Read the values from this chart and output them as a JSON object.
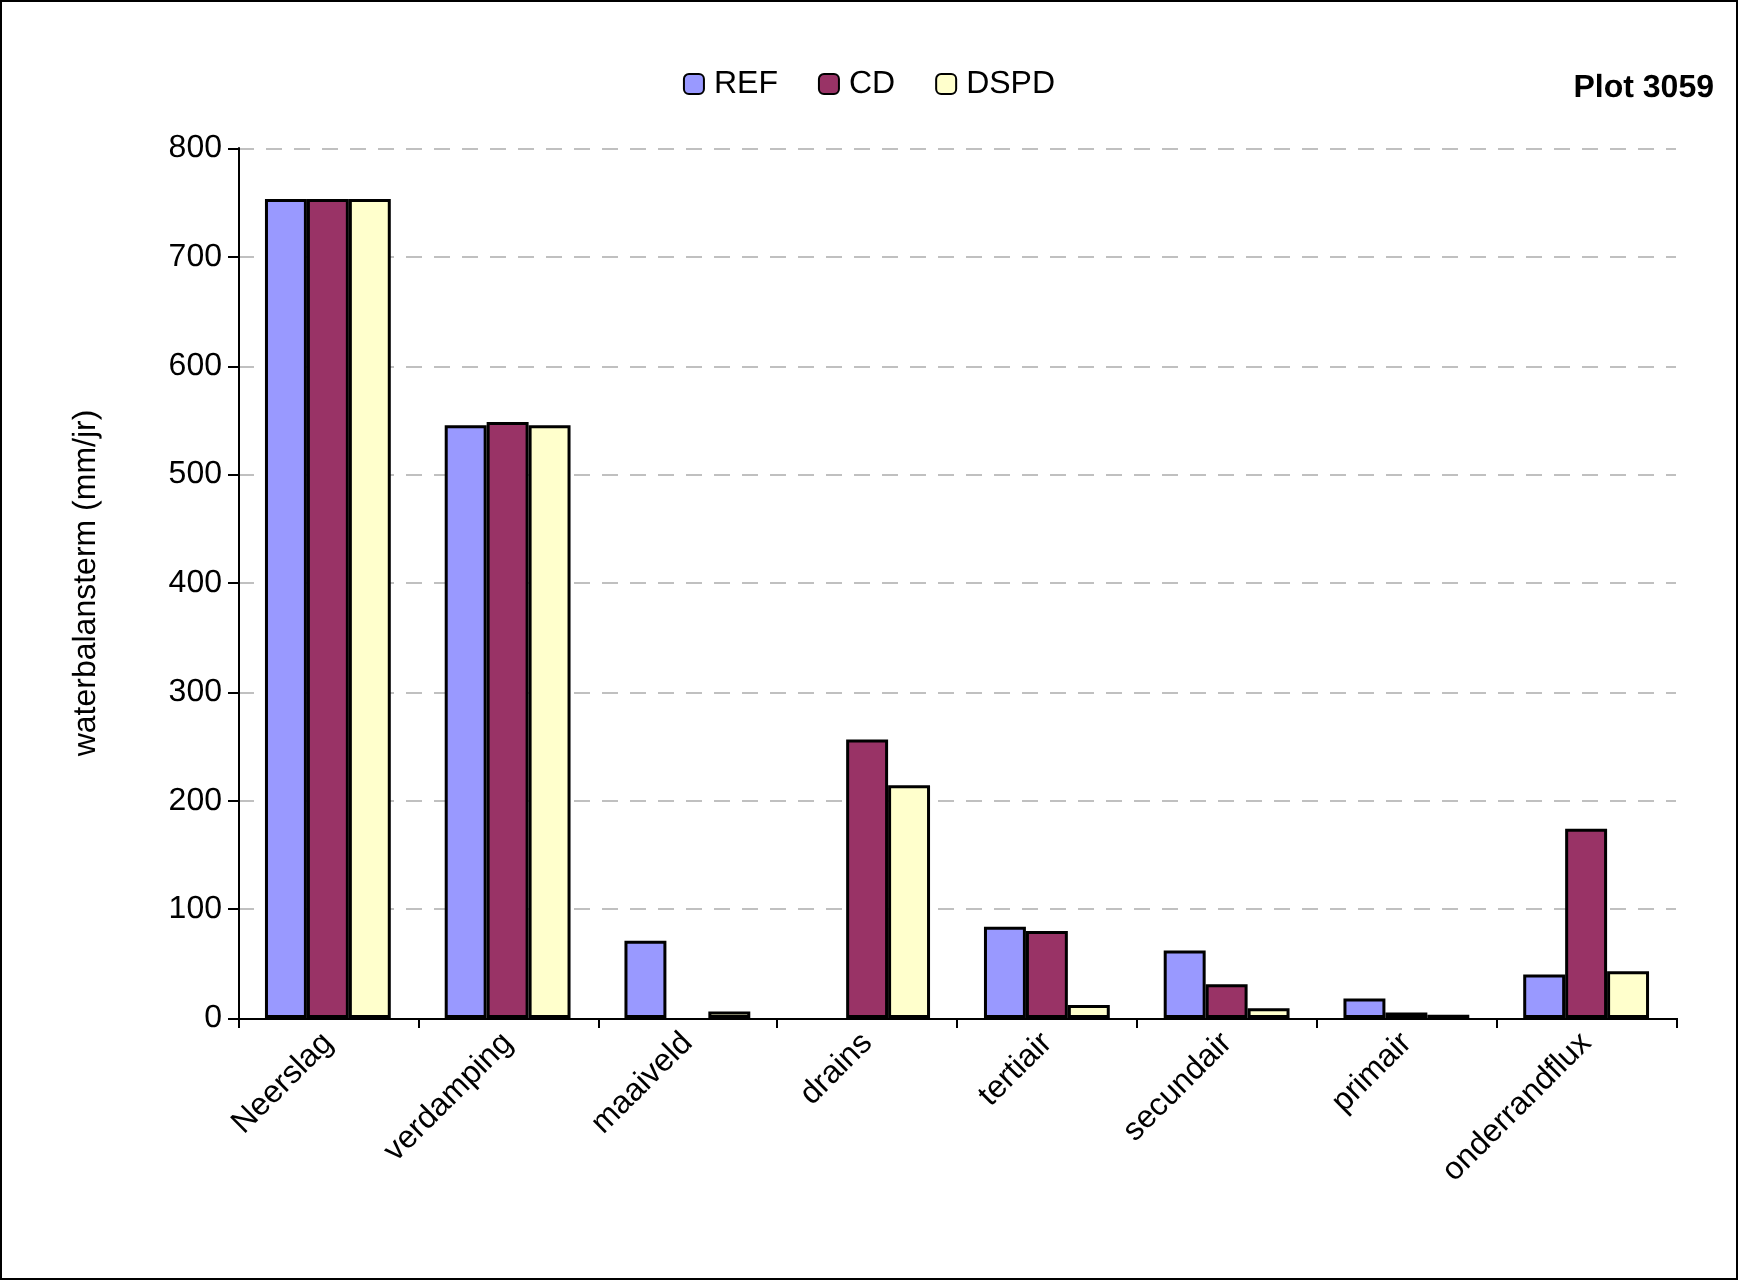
{
  "chart_data": {
    "type": "bar",
    "title": "Plot 3059",
    "ylabel": "waterbalansterm (mm/jr)",
    "categories": [
      "Neerslag",
      "verdamping",
      "maaiveld",
      "drains",
      "tertiair",
      "secundair",
      "primair",
      "onderrandflux"
    ],
    "series": [
      {
        "name": "REF",
        "color": "#9999ff",
        "values": [
          753,
          545,
          71,
          null,
          84,
          62,
          18,
          40
        ]
      },
      {
        "name": "CD",
        "color": "#993366",
        "values": [
          753,
          548,
          null,
          256,
          80,
          31,
          5,
          174
        ]
      },
      {
        "name": "DSPD",
        "color": "#ffffcc",
        "values": [
          753,
          545,
          6,
          214,
          12,
          9,
          3,
          43
        ]
      }
    ],
    "ylim": [
      0,
      800
    ],
    "yticks": [
      0,
      100,
      200,
      300,
      400,
      500,
      600,
      700,
      800
    ],
    "grid": "y",
    "legend": "top"
  }
}
